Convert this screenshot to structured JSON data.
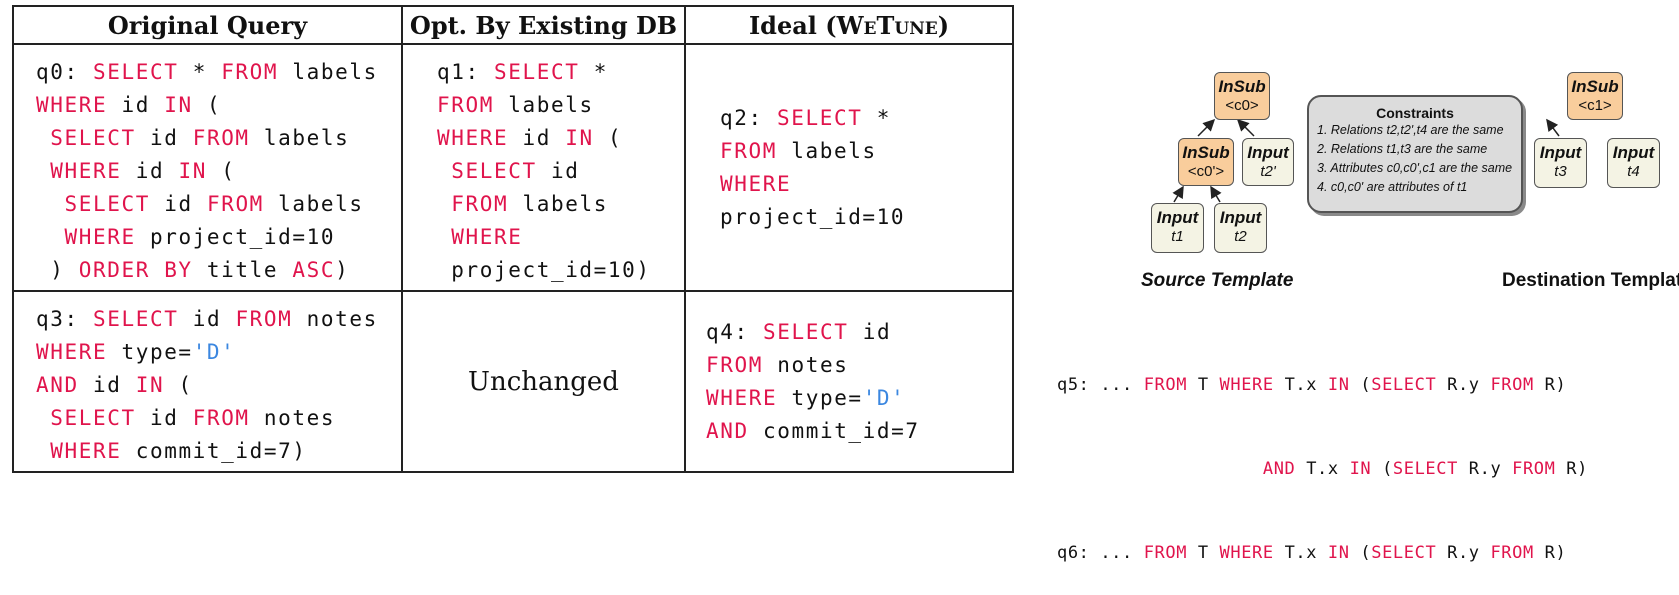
{
  "table": {
    "headers": {
      "original": "Original Query",
      "existing": "Opt. By Existing DB",
      "ideal_prefix": "Ideal (",
      "ideal_name": "WeTune",
      "ideal_suffix": ")"
    },
    "unchanged": "Unchanged",
    "rows": [
      {
        "original": [
          [
            {
              "t": "q0: "
            },
            {
              "t": "SELECT",
              "k": "kw"
            },
            {
              "t": " * "
            },
            {
              "t": "FROM",
              "k": "kw"
            },
            {
              "t": " labels"
            }
          ],
          [
            {
              "t": "WHERE",
              "k": "kw"
            },
            {
              "t": " id "
            },
            {
              "t": "IN",
              "k": "kw"
            },
            {
              "t": " ("
            }
          ],
          [
            {
              "t": " "
            },
            {
              "t": "SELECT",
              "k": "kw"
            },
            {
              "t": " id "
            },
            {
              "t": "FROM",
              "k": "kw"
            },
            {
              "t": " labels"
            }
          ],
          [
            {
              "t": " "
            },
            {
              "t": "WHERE",
              "k": "kw"
            },
            {
              "t": " id "
            },
            {
              "t": "IN",
              "k": "kw"
            },
            {
              "t": " ("
            }
          ],
          [
            {
              "t": "  "
            },
            {
              "t": "SELECT",
              "k": "kw"
            },
            {
              "t": " id "
            },
            {
              "t": "FROM",
              "k": "kw"
            },
            {
              "t": " labels"
            }
          ],
          [
            {
              "t": "  "
            },
            {
              "t": "WHERE",
              "k": "kw"
            },
            {
              "t": " project_id=10"
            }
          ],
          [
            {
              "t": " ) "
            },
            {
              "t": "ORDER BY",
              "k": "kw"
            },
            {
              "t": " title "
            },
            {
              "t": "ASC",
              "k": "kw"
            },
            {
              "t": ")"
            }
          ]
        ],
        "existing": [
          [
            {
              "t": "q1: "
            },
            {
              "t": "SELECT",
              "k": "kw"
            },
            {
              "t": " *"
            }
          ],
          [
            {
              "t": "FROM",
              "k": "kw"
            },
            {
              "t": " labels"
            }
          ],
          [
            {
              "t": "WHERE",
              "k": "kw"
            },
            {
              "t": " id "
            },
            {
              "t": "IN",
              "k": "kw"
            },
            {
              "t": " ("
            }
          ],
          [
            {
              "t": " "
            },
            {
              "t": "SELECT",
              "k": "kw"
            },
            {
              "t": " id"
            }
          ],
          [
            {
              "t": " "
            },
            {
              "t": "FROM",
              "k": "kw"
            },
            {
              "t": " labels"
            }
          ],
          [
            {
              "t": " "
            },
            {
              "t": "WHERE",
              "k": "kw"
            }
          ],
          [
            {
              "t": " project_id=10)"
            }
          ]
        ],
        "ideal": [
          [
            {
              "t": "q2: "
            },
            {
              "t": "SELECT",
              "k": "kw"
            },
            {
              "t": " *"
            }
          ],
          [
            {
              "t": "FROM",
              "k": "kw"
            },
            {
              "t": " labels"
            }
          ],
          [
            {
              "t": "WHERE",
              "k": "kw"
            }
          ],
          [
            {
              "t": "project_id=10"
            }
          ]
        ]
      },
      {
        "original": [
          [
            {
              "t": "q3: "
            },
            {
              "t": "SELECT",
              "k": "kw"
            },
            {
              "t": " id "
            },
            {
              "t": "FROM",
              "k": "kw"
            },
            {
              "t": " notes"
            }
          ],
          [
            {
              "t": "WHERE",
              "k": "kw"
            },
            {
              "t": " type="
            },
            {
              "t": "'D'",
              "k": "str"
            }
          ],
          [
            {
              "t": "AND",
              "k": "kw"
            },
            {
              "t": " id "
            },
            {
              "t": "IN",
              "k": "kw"
            },
            {
              "t": " ("
            }
          ],
          [
            {
              "t": " "
            },
            {
              "t": "SELECT",
              "k": "kw"
            },
            {
              "t": " id "
            },
            {
              "t": "FROM",
              "k": "kw"
            },
            {
              "t": " notes"
            }
          ],
          [
            {
              "t": " "
            },
            {
              "t": "WHERE",
              "k": "kw"
            },
            {
              "t": " commit_id=7)"
            }
          ]
        ],
        "ideal": [
          [
            {
              "t": "q4: "
            },
            {
              "t": "SELECT",
              "k": "kw"
            },
            {
              "t": " id"
            }
          ],
          [
            {
              "t": "FROM",
              "k": "kw"
            },
            {
              "t": " notes"
            }
          ],
          [
            {
              "t": "WHERE",
              "k": "kw"
            },
            {
              "t": " type="
            },
            {
              "t": "'D'",
              "k": "str"
            }
          ],
          [
            {
              "t": "AND",
              "k": "kw"
            },
            {
              "t": " commit_id=7"
            }
          ]
        ]
      }
    ]
  },
  "diagram": {
    "nodes": {
      "insub_top": {
        "title": "InSub",
        "sub": "<c0>"
      },
      "insub_mid": {
        "title": "InSub",
        "sub": "<c0'>"
      },
      "input_t2p": {
        "title": "Input",
        "sub": "t2'"
      },
      "input_t1": {
        "title": "Input",
        "sub": "t1"
      },
      "input_t2": {
        "title": "Input",
        "sub": "t2"
      },
      "insub_dest": {
        "title": "InSub",
        "sub": "<c1>"
      },
      "input_t3": {
        "title": "Input",
        "sub": "t3"
      },
      "input_t4": {
        "title": "Input",
        "sub": "t4"
      }
    },
    "constraints": {
      "title": "Constraints",
      "items": [
        "1. Relations t2,t2',t4 are the same",
        "2. Relations t1,t3 are the same",
        "3. Attributes c0,c0',c1 are the same",
        "4. c0,c0' are attributes of t1"
      ]
    },
    "source_label": "Source Template",
    "dest_label": "Destination Template"
  },
  "queries": [
    [
      {
        "t": "q5: ... "
      },
      {
        "t": "FROM",
        "k": "kw"
      },
      {
        "t": " T "
      },
      {
        "t": "WHERE",
        "k": "kw"
      },
      {
        "t": " T.x "
      },
      {
        "t": "IN",
        "k": "kw"
      },
      {
        "t": " ("
      },
      {
        "t": "SELECT",
        "k": "kw"
      },
      {
        "t": " R.y "
      },
      {
        "t": "FROM",
        "k": "kw"
      },
      {
        "t": " R)"
      }
    ],
    [
      {
        "t": "                   "
      },
      {
        "t": "AND",
        "k": "kw"
      },
      {
        "t": " T.x "
      },
      {
        "t": "IN",
        "k": "kw"
      },
      {
        "t": " ("
      },
      {
        "t": "SELECT",
        "k": "kw"
      },
      {
        "t": " R.y "
      },
      {
        "t": "FROM",
        "k": "kw"
      },
      {
        "t": " R)"
      }
    ],
    [
      {
        "t": "q6: ... "
      },
      {
        "t": "FROM",
        "k": "kw"
      },
      {
        "t": " T "
      },
      {
        "t": "WHERE",
        "k": "kw"
      },
      {
        "t": " T.x "
      },
      {
        "t": "IN",
        "k": "kw"
      },
      {
        "t": " ("
      },
      {
        "t": "SELECT",
        "k": "kw"
      },
      {
        "t": " R.y "
      },
      {
        "t": "FROM",
        "k": "kw"
      },
      {
        "t": " R)"
      }
    ]
  ]
}
